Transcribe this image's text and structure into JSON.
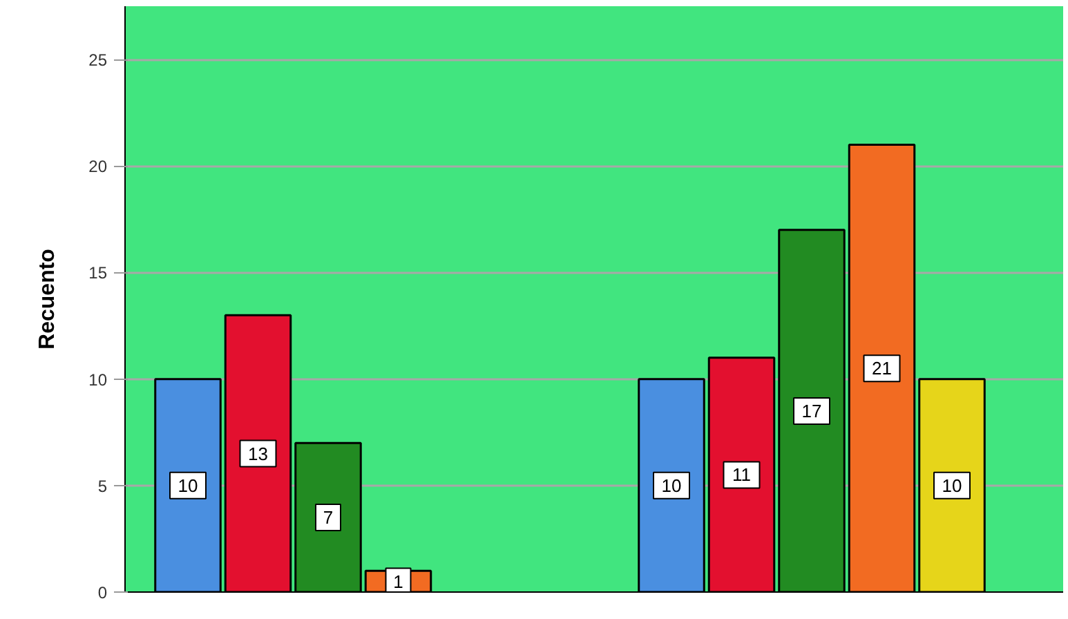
{
  "chart_data": {
    "type": "bar",
    "ylabel": "Recuento",
    "categories": [
      null,
      null
    ],
    "series": [
      {
        "color": "#4a8fe0",
        "values": [
          10,
          10
        ]
      },
      {
        "color": "#e3102f",
        "values": [
          13,
          11
        ]
      },
      {
        "color": "#228b22",
        "values": [
          7,
          17
        ]
      },
      {
        "color": "#f26b22",
        "values": [
          1,
          21
        ]
      },
      {
        "color": "#e6d51a",
        "values": [
          null,
          10
        ]
      }
    ],
    "ylim": [
      0,
      27.5
    ],
    "yticks": [
      0,
      5,
      10,
      15,
      20,
      25
    ],
    "grid": "y",
    "data_labels": true,
    "tick_labels": "y"
  }
}
